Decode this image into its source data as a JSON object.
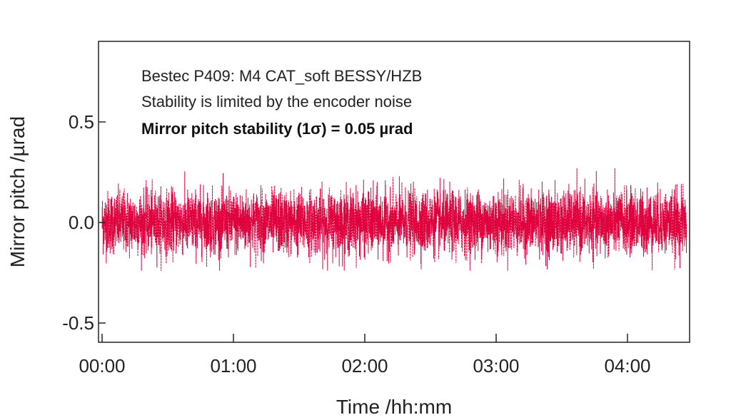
{
  "chart_data": {
    "type": "line",
    "title": "",
    "xlabel": "Time /hh:mm",
    "ylabel": "Mirror pitch /µrad",
    "x_ticks": [
      "00:00",
      "01:00",
      "02:00",
      "03:00",
      "04:00"
    ],
    "y_ticks": [
      "0.5",
      "0.0",
      "-0.5"
    ],
    "xlim_hours": [
      0,
      4.45
    ],
    "ylim": [
      -0.6,
      0.9
    ],
    "grid": false,
    "series": [
      {
        "color": "#E0003C",
        "style": "dashed",
        "description_values": {
          "mean": 0.0,
          "std": 0.05,
          "min": -0.24,
          "max": 0.27,
          "duration_hours": 4.45
        }
      }
    ],
    "annotations": [
      "Bestec P409: M4 CAT_soft BESSY/HZB",
      "Stability is limited by the encoder noise",
      "Mirror pitch stability (1σ) = 0.05 µrad"
    ]
  }
}
